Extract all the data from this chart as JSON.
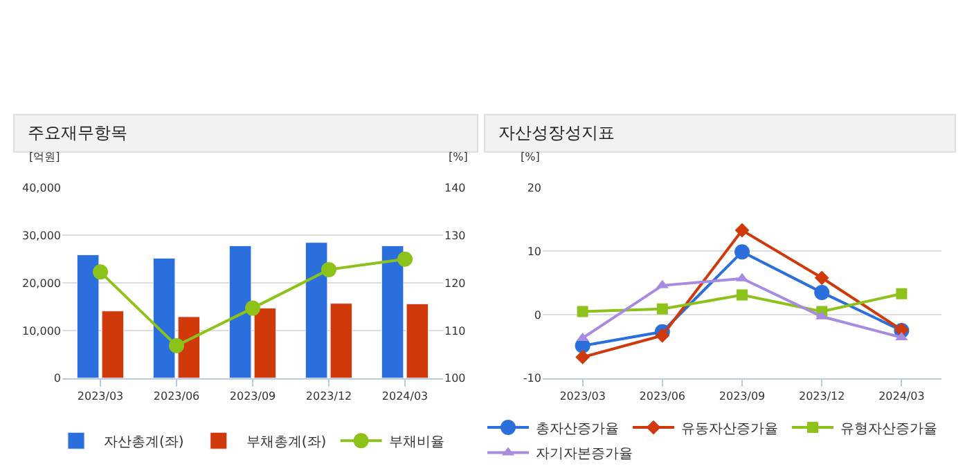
{
  "chart_data": [
    {
      "type": "bar",
      "title": "주요재무항목",
      "ylabel": "[억원]",
      "y2label": "[%]",
      "categories": [
        "2023/03",
        "2023/06",
        "2023/09",
        "2023/12",
        "2024/03"
      ],
      "series": [
        {
          "name": "자산총계(좌)",
          "color": "#2a6fdb",
          "values": [
            25900,
            25200,
            27800,
            28500,
            27800
          ]
        },
        {
          "name": "부채총계(좌)",
          "color": "#d03a0a",
          "values": [
            14100,
            12900,
            14700,
            15700,
            15600
          ]
        },
        {
          "name": "부채비율",
          "type": "line",
          "axis": "y2",
          "marker": "circle",
          "color": "#8cc21a",
          "values": [
            122.3,
            106.8,
            114.7,
            122.8,
            125.0
          ]
        }
      ],
      "ylim": [
        0,
        40000
      ],
      "yticks": [
        0,
        {
          "value": 10000,
          "label": "10,000"
        },
        {
          "value": 20000,
          "label": "20,000"
        },
        {
          "value": 30000,
          "label": "30,000"
        },
        {
          "value": 40000,
          "label": "40,000"
        }
      ],
      "y2lim": [
        100,
        140
      ],
      "y2ticks": [
        100,
        110,
        120,
        130,
        140
      ],
      "grid": "y",
      "legend": "bottom"
    },
    {
      "type": "line",
      "title": "자산성장성지표",
      "ylabel": "[%]",
      "categories": [
        "2023/03",
        "2023/06",
        "2023/09",
        "2023/12",
        "2024/03"
      ],
      "series": [
        {
          "name": "총자산증가율",
          "color": "#2a6fdb",
          "marker": "circle",
          "values": [
            -4.9,
            -2.7,
            9.9,
            3.5,
            -2.5
          ]
        },
        {
          "name": "유동자산증가율",
          "color": "#d03a0a",
          "marker": "diamond",
          "values": [
            -6.7,
            -3.3,
            13.3,
            5.8,
            -2.4
          ]
        },
        {
          "name": "유형자산증가율",
          "color": "#8cc21a",
          "marker": "square",
          "values": [
            0.5,
            0.9,
            3.1,
            0.5,
            3.3
          ]
        },
        {
          "name": "자기자본증가율",
          "color": "#a78be0",
          "marker": "triangle",
          "values": [
            -3.7,
            4.6,
            5.7,
            -0.3,
            -3.6
          ]
        }
      ],
      "ylim": [
        -10,
        20
      ],
      "yticks": [
        -10,
        0,
        10,
        20
      ],
      "grid": "y",
      "legend": "bottom"
    }
  ]
}
